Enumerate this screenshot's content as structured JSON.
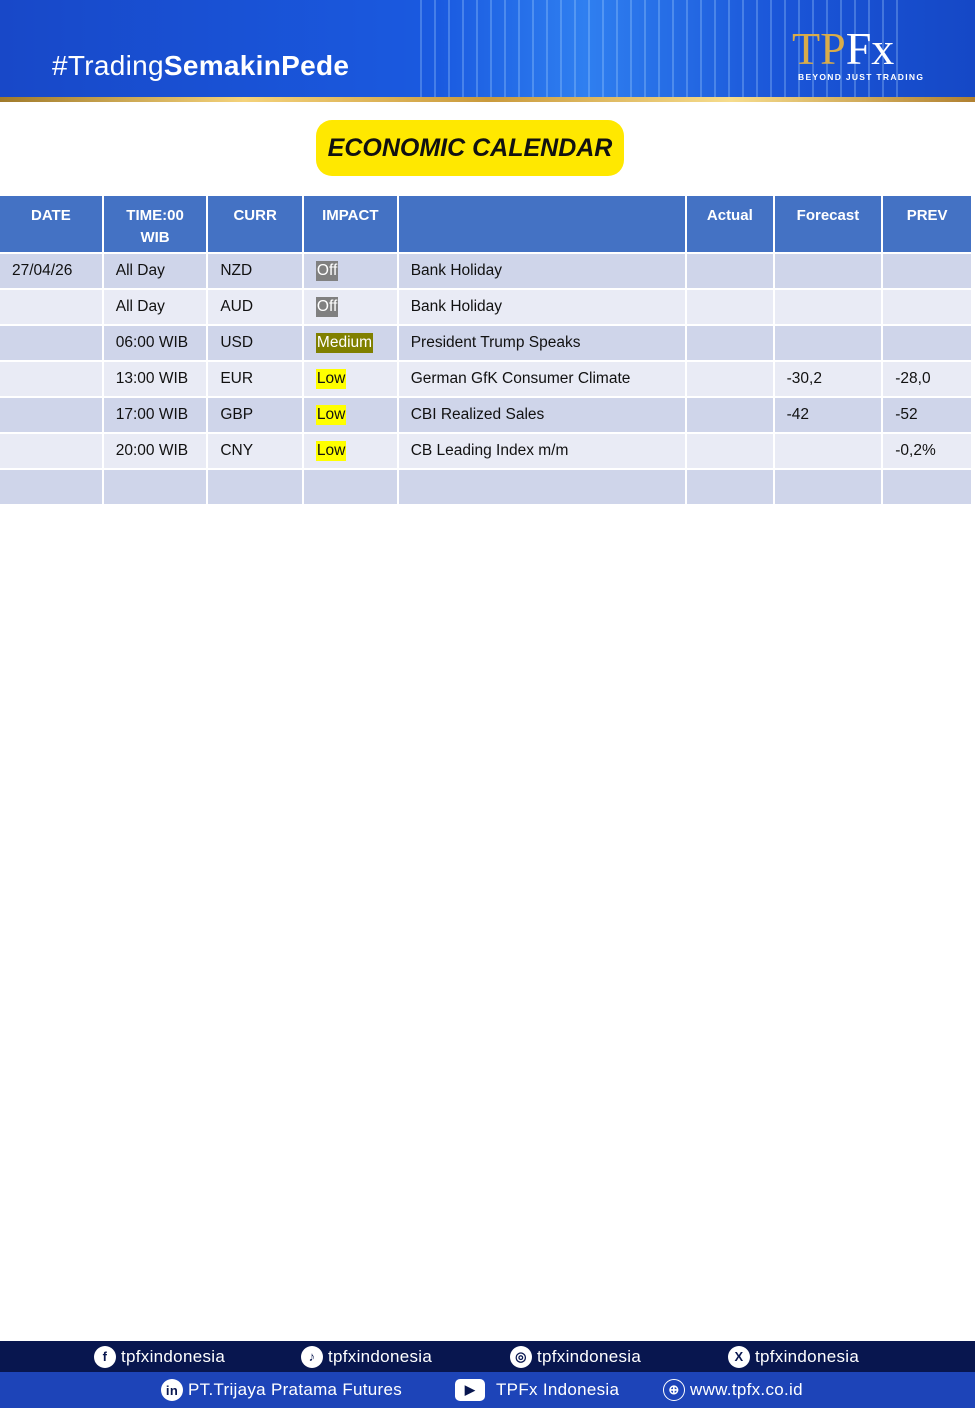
{
  "banner": {
    "hashtag_light": "#Trading",
    "hashtag_bold": "SemakinPede",
    "logo_text": "TPFx",
    "logo_tagline": "BEYOND JUST TRADING"
  },
  "title": "ECONOMIC CALENDAR",
  "table": {
    "headers": [
      "DATE",
      "TIME:00\nWIB",
      "CURR",
      "IMPACT",
      "",
      "Actual",
      "Forecast",
      "PREV"
    ],
    "rows": [
      {
        "date": "27/04/26",
        "time": "All Day",
        "curr": "NZD",
        "impact": "Off",
        "event": "Bank Holiday",
        "actual": "",
        "forecast": "",
        "prev": ""
      },
      {
        "date": "",
        "time": "All Day",
        "curr": "AUD",
        "impact": "Off",
        "event": "Bank Holiday",
        "actual": "",
        "forecast": "",
        "prev": ""
      },
      {
        "date": "",
        "time": "06:00 WIB",
        "curr": "USD",
        "impact": "Medium",
        "event": "President Trump Speaks",
        "actual": "",
        "forecast": "",
        "prev": ""
      },
      {
        "date": "",
        "time": "13:00 WIB",
        "curr": "EUR",
        "impact": "Low",
        "event": "German GfK Consumer Climate",
        "actual": "",
        "forecast": "-30,2",
        "prev": "-28,0"
      },
      {
        "date": "",
        "time": "17:00 WIB",
        "curr": "GBP",
        "impact": "Low",
        "event": "CBI Realized Sales",
        "actual": "",
        "forecast": "-42",
        "prev": "-52"
      },
      {
        "date": "",
        "time": "20:00 WIB",
        "curr": "CNY",
        "impact": "Low",
        "event": "CB Leading Index m/m",
        "actual": "",
        "forecast": "",
        "prev": "-0,2%"
      },
      {
        "date": "",
        "time": "",
        "curr": "",
        "impact": "",
        "event": "",
        "actual": "",
        "forecast": "",
        "prev": ""
      }
    ]
  },
  "colors": {
    "header": "#4472c4",
    "row_odd": "#cfd5ea",
    "row_even": "#e9ebf5",
    "impact_off": "#808080",
    "impact_medium": "#808000",
    "impact_low": "#ffff00",
    "title_pill": "#ffe800"
  },
  "footer": {
    "social": [
      {
        "icon": "facebook-icon",
        "label": "tpfxindonesia"
      },
      {
        "icon": "tiktok-icon",
        "label": "tpfxindonesia"
      },
      {
        "icon": "instagram-icon",
        "label": "tpfxindonesia"
      },
      {
        "icon": "x-icon",
        "label": "tpfxindonesia"
      }
    ],
    "links": [
      {
        "icon": "linkedin-icon",
        "label": "PT.Trijaya Pratama Futures"
      },
      {
        "icon": "youtube-icon",
        "label": "TPFx Indonesia"
      },
      {
        "icon": "globe-icon",
        "label": "www.tpfx.co.id"
      }
    ]
  }
}
